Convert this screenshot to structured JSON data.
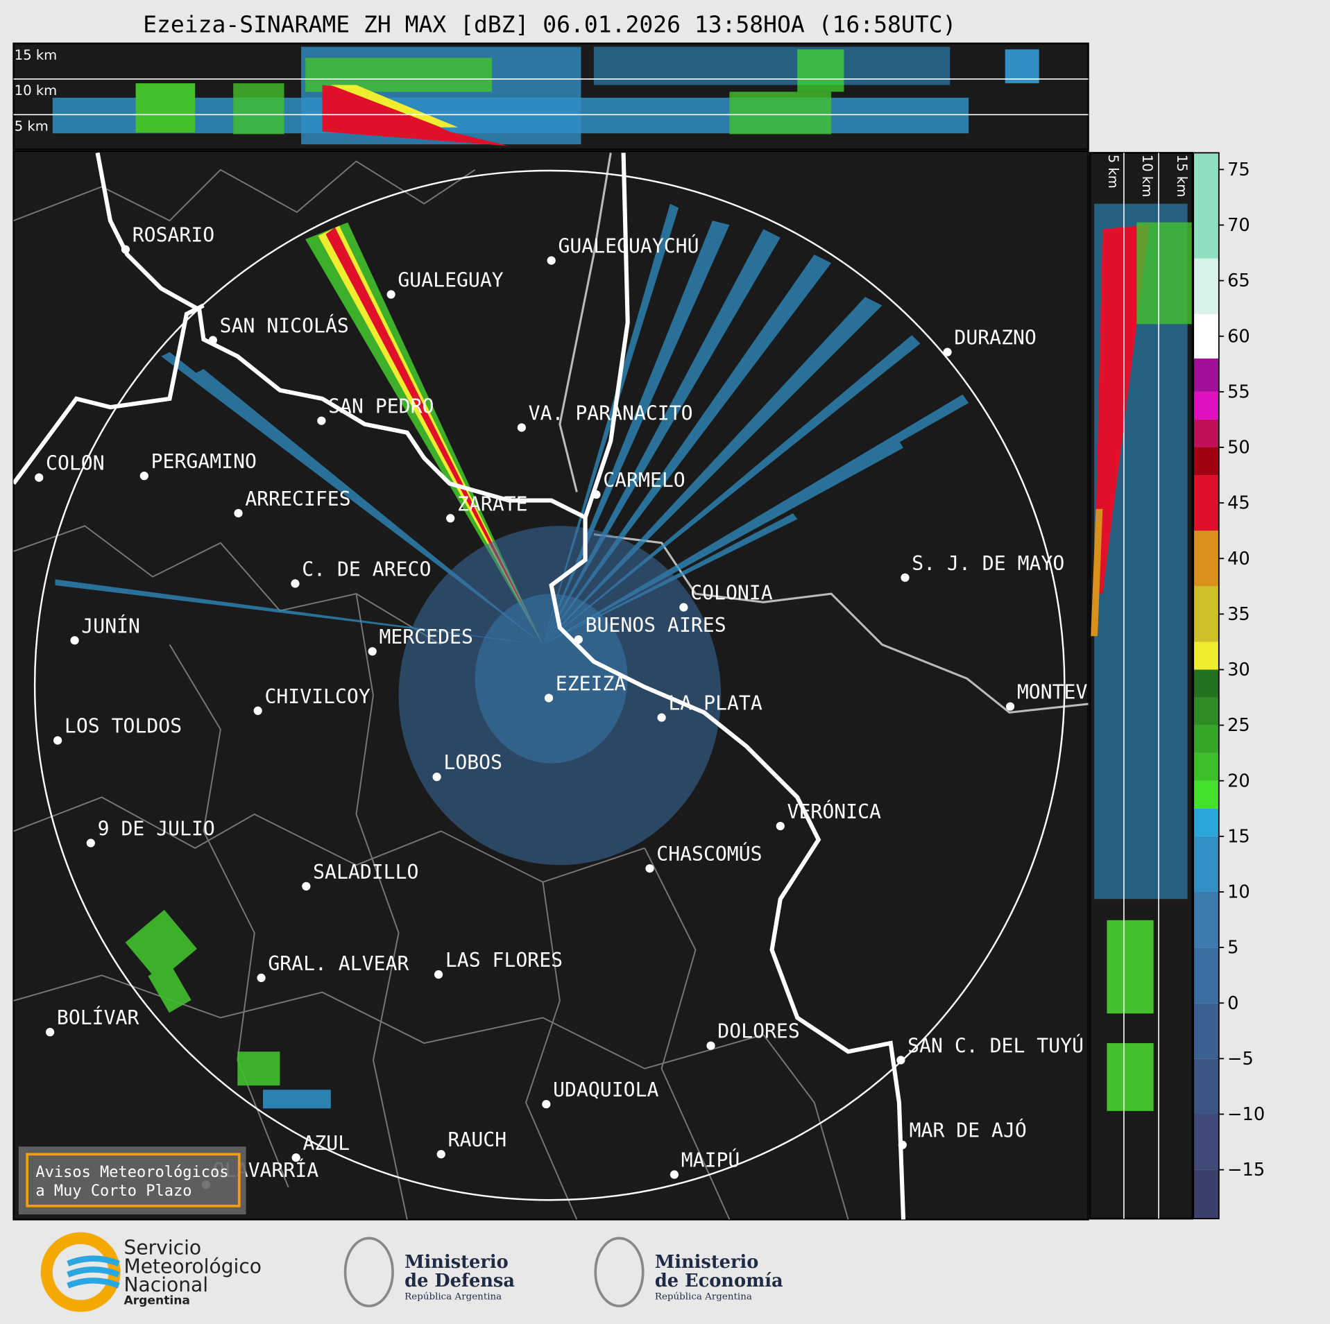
{
  "title": "Ezeiza-SINARAME ZH MAX [dBZ] 06.01.2026 13:58HOA (16:58UTC)",
  "height_labels": [
    "15 km",
    "10 km",
    "5 km"
  ],
  "side_height_labels": [
    "5 km",
    "10 km",
    "15 km"
  ],
  "cities": [
    "ROSARIO",
    "GUALEGUAYCHÚ",
    "GUALEGUAY",
    "SAN NICOLÁS",
    "DURAZNO",
    "SAN PEDRO",
    "VA. PARANACITO",
    "COLON",
    "PERGAMINO",
    "CARMELO",
    "ARRECIFES",
    "ZARATE",
    "S. J. DE MAYO",
    "C. DE ARECO",
    "COLONIA",
    "BUENOS AIRES",
    "JUNÍN",
    "MERCEDES",
    "MONTEVIDEO",
    "EZEIZA",
    "CHIVILCOY",
    "LA PLATA",
    "LOS TOLDOS",
    "LOBOS",
    "VERÓNICA",
    "9 DE JULIO",
    "CHASCOMÚS",
    "SALADILLO",
    "GRAL. ALVEAR",
    "LAS FLORES",
    "BOLÍVAR",
    "DOLORES",
    "SAN C. DEL TUYÚ",
    "UDAQUIOLA",
    "MAR DE AJÓ",
    "RAUCH",
    "AZUL",
    "OLAVARRÍA",
    "MAIPÚ"
  ],
  "warning_box": [
    "Avisos Meteorológicos",
    "a Muy Corto Plazo"
  ],
  "colorbar": {
    "range": [
      -19.4,
      76.5
    ],
    "ticks": [
      75,
      70,
      65,
      60,
      55,
      50,
      45,
      40,
      35,
      30,
      25,
      20,
      15,
      10,
      5,
      0,
      {
        "value": -5,
        "label": "−5"
      },
      {
        "value": -10,
        "label": "−10"
      },
      {
        "value": -15,
        "label": "−15"
      }
    ],
    "bands": [
      {
        "from": -19.4,
        "to": -15,
        "color": "#3b3f6b"
      },
      {
        "from": -15,
        "to": -10,
        "color": "#3f4a78"
      },
      {
        "from": -10,
        "to": -5,
        "color": "#3d5585"
      },
      {
        "from": -5,
        "to": 0,
        "color": "#3b6193"
      },
      {
        "from": 0,
        "to": 5,
        "color": "#3a6ea0"
      },
      {
        "from": 5,
        "to": 10,
        "color": "#3a7cb0"
      },
      {
        "from": 10,
        "to": 15,
        "color": "#3290c4"
      },
      {
        "from": 15,
        "to": 17.5,
        "color": "#2aa6d8"
      },
      {
        "from": 17.5,
        "to": 20,
        "color": "#43e02c"
      },
      {
        "from": 20,
        "to": 22.5,
        "color": "#3cc02a"
      },
      {
        "from": 22.5,
        "to": 25,
        "color": "#35a628"
      },
      {
        "from": 25,
        "to": 27.5,
        "color": "#2e8c25"
      },
      {
        "from": 27.5,
        "to": 30,
        "color": "#237220"
      },
      {
        "from": 30,
        "to": 32.5,
        "color": "#f0ec30"
      },
      {
        "from": 32.5,
        "to": 37.5,
        "color": "#cfc02a"
      },
      {
        "from": 37.5,
        "to": 42.5,
        "color": "#d9901c"
      },
      {
        "from": 42.5,
        "to": 47.5,
        "color": "#e0102a"
      },
      {
        "from": 47.5,
        "to": 50,
        "color": "#a00010"
      },
      {
        "from": 50,
        "to": 52.5,
        "color": "#c0105a"
      },
      {
        "from": 52.5,
        "to": 55,
        "color": "#e010c0"
      },
      {
        "from": 55,
        "to": 58,
        "color": "#a0109a"
      },
      {
        "from": 58,
        "to": 62,
        "color": "#ffffff"
      },
      {
        "from": 62,
        "to": 67,
        "color": "#d8f2e8"
      },
      {
        "from": 67,
        "to": 76.5,
        "color": "#8ee0c0"
      }
    ]
  },
  "logos": {
    "smn": [
      "Servicio",
      "Meteorológico",
      "Nacional",
      "Argentina"
    ],
    "defensa": [
      "Ministerio",
      "de Defensa",
      "República Argentina"
    ],
    "economia": [
      "Ministerio",
      "de Economía",
      "República Argentina"
    ]
  }
}
